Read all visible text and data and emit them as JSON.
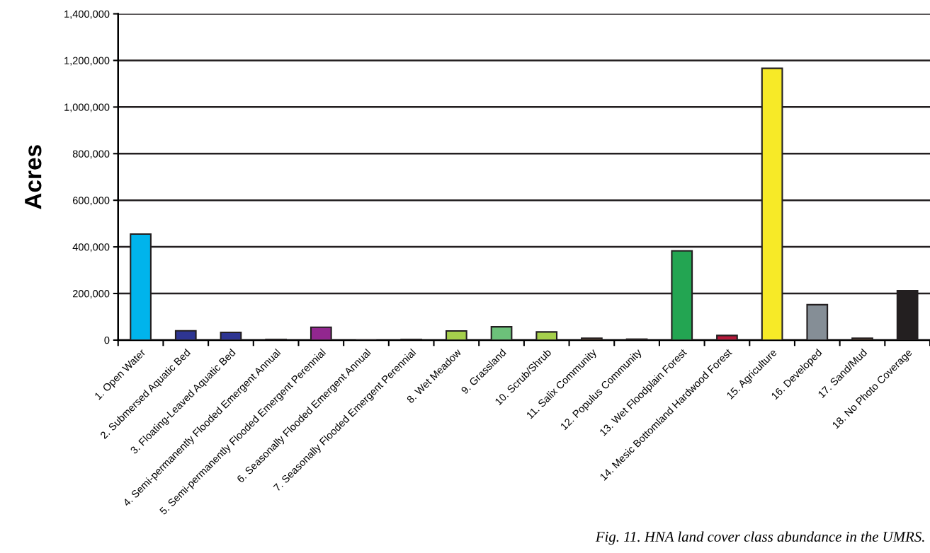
{
  "chart_data": {
    "type": "bar",
    "ylabel": "Acres",
    "categories": [
      "1. Open Water",
      "2. Submersed Aquatic Bed",
      "3. Floating-Leaved Aquatic Bed",
      "4. Semi-permanently Flooded Emergent Annual",
      "5. Semi-permanently Flooded Emergent Perennial",
      "6. Seasonally Flooded Emergent Annual",
      "7. Seasonally Flooded Emergent Perennial",
      "8. Wet Meadow",
      "9. Grassland",
      "10. Scrub/Shrub",
      "11. Salix Community",
      "12. Populus Community",
      "13. Wet Floodplain Forest",
      "14. Mesic Bottomland Hardwood Forest",
      "15. Agriculture",
      "16. Developed",
      "17. Sand/Mud",
      "18. No Photo Coverage"
    ],
    "values": [
      455000,
      40000,
      33000,
      3000,
      55000,
      0,
      3000,
      39000,
      57000,
      35000,
      8000,
      4000,
      383000,
      20000,
      1166000,
      152000,
      8000,
      212000
    ],
    "colors": [
      "#00b4ec",
      "#2e3592",
      "#2e3592",
      "#6b4a2e",
      "#92278f",
      "#231f20",
      "#6b4a2e",
      "#a5cf4c",
      "#6cc17a",
      "#a5cf4c",
      "#6b4a2e",
      "#6b4a2e",
      "#23a552",
      "#b5193a",
      "#f7ea27",
      "#858e96",
      "#6b4a2e",
      "#231f20"
    ],
    "ylim": [
      0,
      1400000
    ],
    "yticks": [
      {
        "value": 0,
        "label": "0"
      },
      {
        "value": 200000,
        "label": "200,000"
      },
      {
        "value": 400000,
        "label": "400,000"
      },
      {
        "value": 600000,
        "label": "600,000"
      },
      {
        "value": 800000,
        "label": "800,000"
      },
      {
        "value": 1000000,
        "label": "1,000,000"
      },
      {
        "value": 1200000,
        "label": "1,200,000"
      },
      {
        "value": 1400000,
        "label": "1,400,000"
      }
    ],
    "grid": "y",
    "annotations": [
      "Fig. 11. HNA land cover class abundance in the UMRS."
    ]
  }
}
